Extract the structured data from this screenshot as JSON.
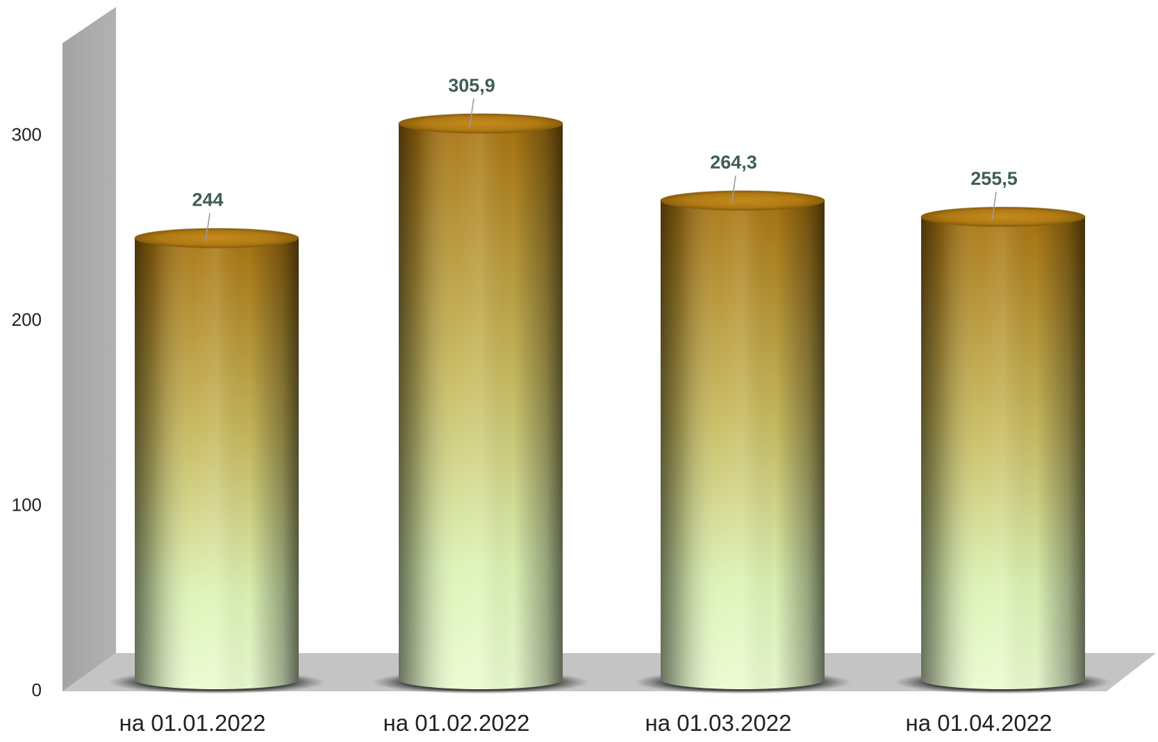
{
  "chart_data": {
    "type": "bar",
    "style": "3d-cylinder",
    "categories": [
      "на 01.01.2022",
      "на 01.02.2022",
      "на 01.03.2022",
      "на 01.04.2022"
    ],
    "series": [
      {
        "values": [
          244,
          305.9,
          264.3,
          255.5
        ],
        "data_labels": [
          "244",
          "305,9",
          "264,3",
          "255,5"
        ]
      }
    ],
    "yticks": [
      {
        "value": 0,
        "label": "0"
      },
      {
        "value": 100,
        "label": "100"
      },
      {
        "value": 200,
        "label": "200"
      },
      {
        "value": 300,
        "label": "300"
      }
    ],
    "ylim": [
      0,
      350
    ],
    "grid": false,
    "legend": "none",
    "colors": {
      "cylinder_top": "#a87410",
      "cylinder_mid": "#c8bb60",
      "cylinder_bottom": "#e4f8c4",
      "wall": "#a6a6a6",
      "floor": "#c4c4c4",
      "data_label": "#3f5e50"
    }
  }
}
